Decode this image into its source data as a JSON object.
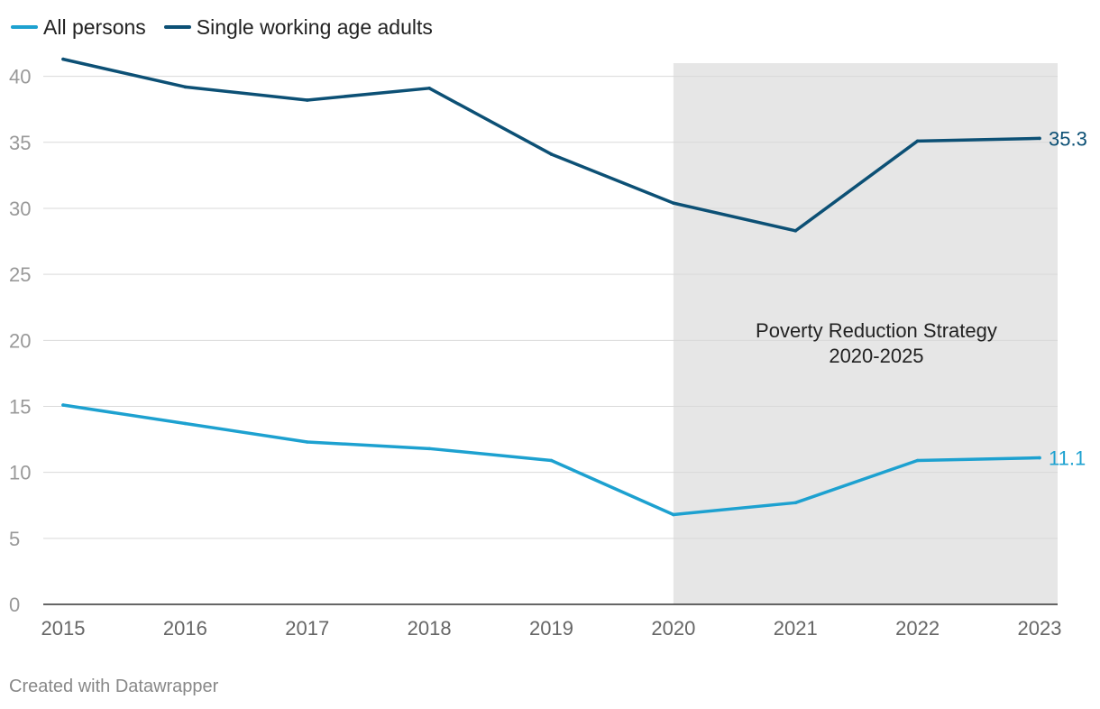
{
  "chart_data": {
    "type": "line",
    "title": "",
    "xlabel": "",
    "ylabel": "",
    "x": [
      2015,
      2016,
      2017,
      2018,
      2019,
      2020,
      2021,
      2022,
      2023
    ],
    "ylim": [
      0,
      41
    ],
    "yticks": [
      0,
      5,
      10,
      15,
      20,
      25,
      30,
      35,
      40
    ],
    "grid": true,
    "legend": "top-left",
    "series": [
      {
        "name": "All persons",
        "color": "#1da1d0",
        "values": [
          15.1,
          13.7,
          12.3,
          11.8,
          10.9,
          6.8,
          7.7,
          10.9,
          11.1
        ],
        "end_label": "11.1"
      },
      {
        "name": "Single working age adults",
        "color": "#0c5075",
        "values": [
          41.3,
          39.2,
          38.2,
          39.1,
          34.1,
          30.4,
          28.3,
          35.1,
          35.3
        ],
        "end_label": "35.3"
      }
    ],
    "highlight_region": {
      "x_start": 2020,
      "x_end": 2023,
      "label_line1": "Poverty Reduction Strategy",
      "label_line2": "2020-2025",
      "color": "#e6e6e6"
    }
  },
  "footer": {
    "credit": "Created with Datawrapper"
  }
}
